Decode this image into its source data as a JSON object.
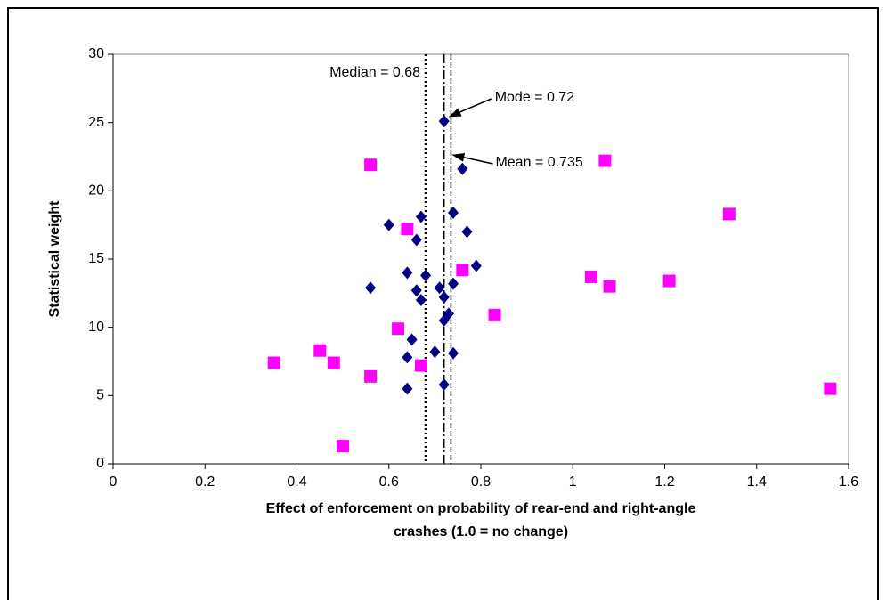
{
  "chart_data": {
    "type": "scatter",
    "xlabel": [
      "Effect of enforcement on probability of rear-end and right-angle",
      "crashes (1.0 = no change)"
    ],
    "ylabel": "Statistical weight",
    "xlim": [
      0,
      1.6
    ],
    "xticks": [
      0,
      0.2,
      0.4,
      0.6,
      0.8,
      1,
      1.2,
      1.4,
      1.6
    ],
    "ylim": [
      0,
      30
    ],
    "yticks": [
      0,
      5,
      10,
      15,
      20,
      25,
      30
    ],
    "grid": false,
    "series": [
      {
        "color": "#000080",
        "marker": "diamond",
        "x": [
          0.72,
          0.76,
          0.6,
          0.67,
          0.74,
          0.66,
          0.77,
          0.79,
          0.64,
          0.68,
          0.56,
          0.66,
          0.67,
          0.71,
          0.72,
          0.74,
          0.73,
          0.72,
          0.65,
          0.7,
          0.64,
          0.74,
          0.64,
          0.72
        ],
        "values": [
          25.1,
          21.6,
          17.5,
          18.1,
          18.4,
          16.4,
          17.0,
          14.5,
          14.0,
          13.8,
          12.9,
          12.7,
          12.0,
          12.9,
          12.2,
          13.2,
          11.0,
          10.5,
          9.1,
          8.2,
          7.8,
          8.1,
          5.5,
          5.8
        ]
      },
      {
        "color": "#ff00ff",
        "marker": "square",
        "x": [
          0.35,
          0.45,
          0.48,
          0.5,
          0.56,
          0.56,
          0.64,
          0.62,
          0.67,
          0.76,
          0.83,
          1.04,
          1.07,
          1.08,
          1.21,
          1.34,
          1.56
        ],
        "values": [
          7.4,
          8.3,
          7.4,
          1.3,
          6.4,
          21.9,
          17.2,
          9.9,
          7.2,
          14.2,
          10.9,
          13.7,
          22.2,
          13.0,
          13.4,
          18.3,
          5.5
        ]
      }
    ],
    "reference_lines": [
      {
        "value": 0.68,
        "label": "Median = 0.68",
        "dash": "dotted"
      },
      {
        "value": 0.72,
        "label": "Mode = 0.72",
        "dash": "dashdot"
      },
      {
        "value": 0.735,
        "label": "Mean = 0.735",
        "dash": "dashed"
      }
    ]
  }
}
